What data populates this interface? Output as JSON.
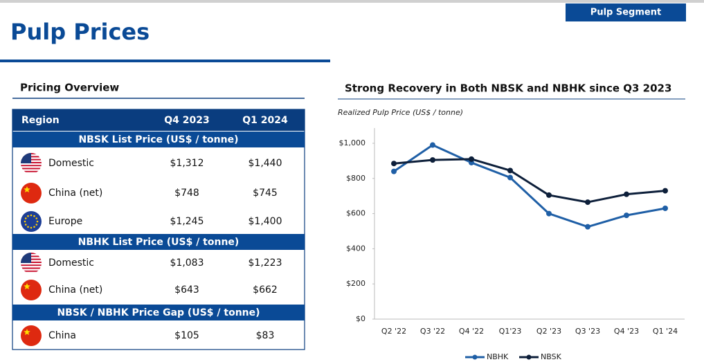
{
  "header": {
    "title": "Pulp Prices",
    "badge": "Pulp Segment"
  },
  "table": {
    "title": "Pricing Overview",
    "columns": [
      "Region",
      "Q4 2023",
      "Q1 2024"
    ],
    "sections": [
      {
        "title": "NBSK List Price (US$ / tonne)",
        "rows": [
          [
            "Domestic",
            "$1,312",
            "$1,440"
          ],
          [
            "China (net)",
            "$748",
            "$745"
          ],
          [
            "Europe",
            "$1,245",
            "$1,400"
          ]
        ]
      },
      {
        "title": "NBHK List Price (US$ / tonne)",
        "rows": [
          [
            "Domestic",
            "$1,083",
            "$1,223"
          ],
          [
            "China (net)",
            "$643",
            "$662"
          ]
        ]
      },
      {
        "title": "NBSK / NBHK Price Gap (US$ / tonne)",
        "rows": [
          [
            "China",
            "$105",
            "$83"
          ]
        ]
      }
    ]
  },
  "chart_data": {
    "type": "line",
    "title": "Strong Recovery in Both NBSK and NBHK since Q3 2023",
    "y_label": "Realized Pulp Price (US$ / tonne)",
    "categories": [
      "Q2 '22",
      "Q3 '22",
      "Q4 '22",
      "Q1'23",
      "Q2 '23",
      "Q3 '23",
      "Q4 '23",
      "Q1 '24"
    ],
    "series": [
      {
        "name": "NBHK",
        "color": "#1f5fa6",
        "values": [
          840,
          990,
          890,
          805,
          600,
          525,
          590,
          630
        ]
      },
      {
        "name": "NBSK",
        "color": "#0d1f3a",
        "values": [
          885,
          905,
          910,
          845,
          705,
          665,
          710,
          730
        ]
      }
    ],
    "ylim": [
      0,
      1000
    ],
    "yticks": [
      {
        "value": 0,
        "label": "$0"
      },
      {
        "value": 200,
        "label": "$200"
      },
      {
        "value": 400,
        "label": "$400"
      },
      {
        "value": 600,
        "label": "$600"
      },
      {
        "value": 800,
        "label": "$800"
      },
      {
        "value": 1000,
        "label": "$1,000"
      }
    ],
    "grid": false,
    "legend": "bottom"
  }
}
